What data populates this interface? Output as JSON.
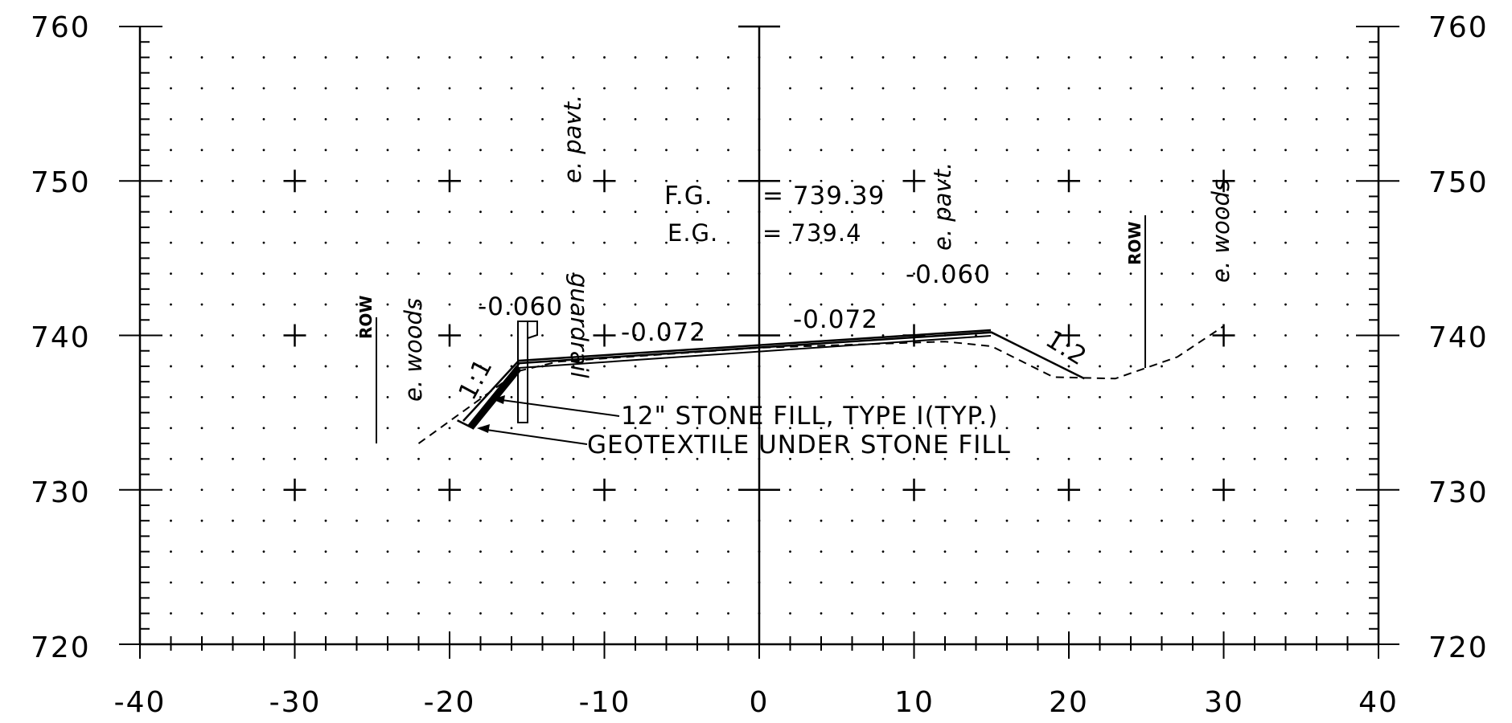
{
  "chart_data": {
    "type": "cross-section",
    "xlim": [
      -40,
      40
    ],
    "ylim": [
      720,
      760
    ],
    "x_ticks": [
      "-40",
      "-30",
      "-20",
      "-10",
      "0",
      "10",
      "20",
      "30",
      "40"
    ],
    "y_ticks": [
      "720",
      "730",
      "740",
      "750",
      "760"
    ],
    "grid": "dotted",
    "proposed_section": [
      [
        -19.5,
        734.5
      ],
      [
        -18.5,
        734
      ],
      [
        -15.5,
        738.2
      ],
      [
        15,
        740.2
      ],
      [
        21,
        737.2
      ]
    ],
    "existing_ground": [
      [
        -22,
        733
      ],
      [
        -15.5,
        737.7
      ],
      [
        -13,
        738.3
      ],
      [
        0,
        739.2
      ],
      [
        12,
        739.6
      ],
      [
        15,
        739.3
      ],
      [
        19,
        737.3
      ],
      [
        23,
        737.2
      ],
      [
        27,
        738.6
      ],
      [
        30,
        740.6
      ]
    ],
    "fg_label": "F.G.",
    "fg_eq": "= 739.39",
    "eg_label": "E.G.",
    "eg_eq": "= 739.4",
    "annotations": {
      "slope_left": "-0.060",
      "slope_mid_left": "-0.072",
      "slope_mid_right": "-0.072",
      "slope_right": "-0.060",
      "side_slope_left": "1:1",
      "side_slope_right": "1:2",
      "stone_fill": "12\" STONE FILL, TYPE I(TYP.)",
      "geotextile": "GEOTEXTILE UNDER STONE FILL",
      "guardrail": "guardrail",
      "e_pavt_left": "e. pavt.",
      "e_pavt_right": "e. pavt.",
      "e_woods_left": "e. woods",
      "e_woods_right": "e. woods",
      "row_left": "ROW",
      "row_right": "ROW"
    }
  }
}
